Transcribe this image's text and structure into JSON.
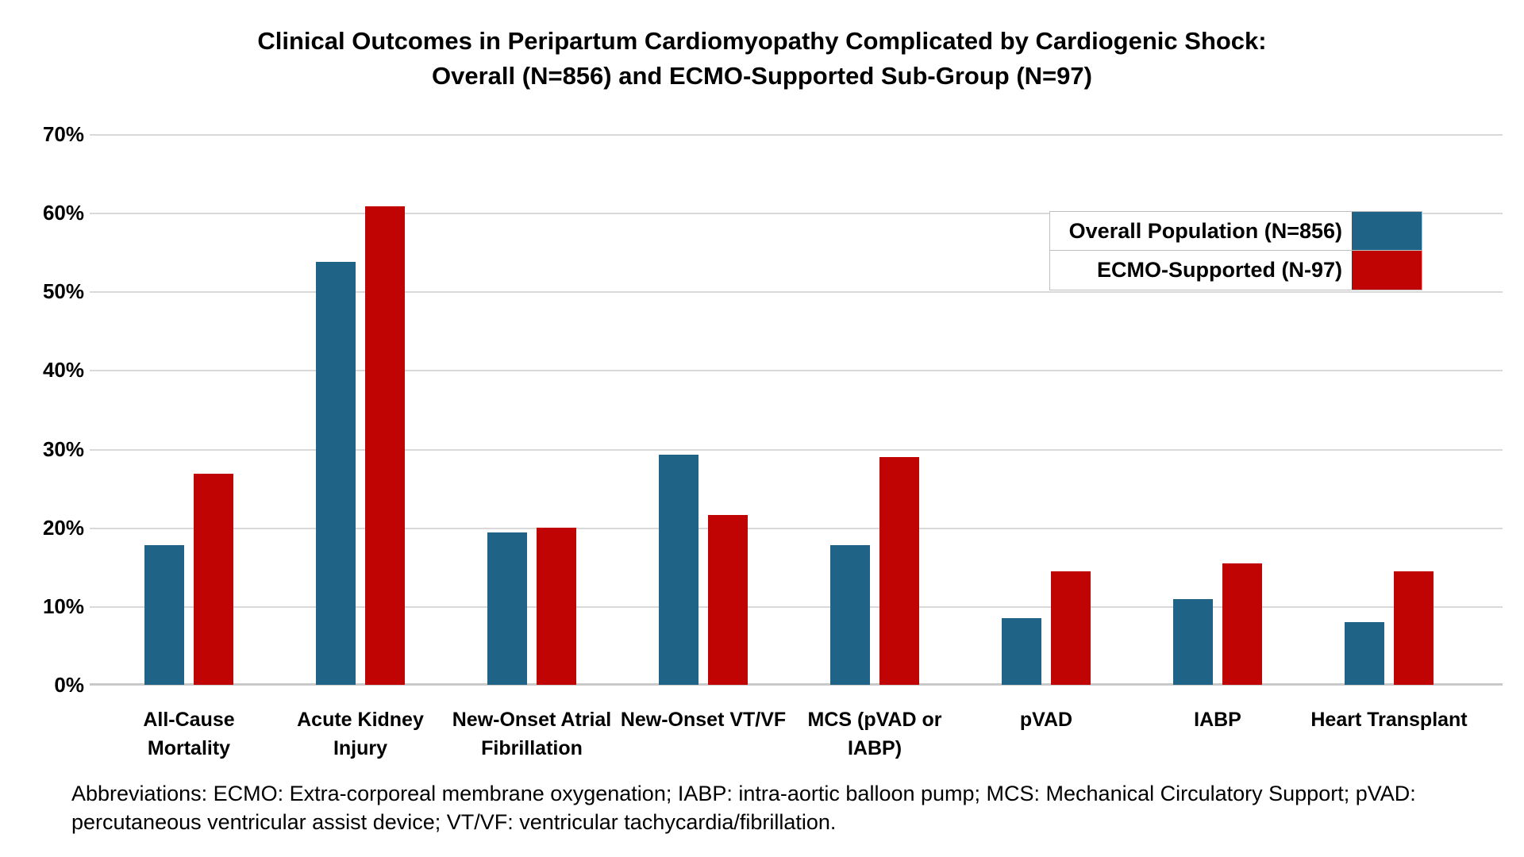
{
  "title": {
    "text": "Clinical Outcomes in Peripartum Cardiomyopathy Complicated by Cardiogenic Shock:\nOverall (N=856) and ECMO-Supported Sub-Group (N=97)"
  },
  "footnote": {
    "text": "Abbreviations: ECMO: Extra-corporeal membrane oxygenation; IABP: intra-aortic balloon pump; MCS: Mechanical Circulatory Support; pVAD:\npercutaneous ventricular assist device;  VT/VF: ventricular tachycardia/fibrillation."
  },
  "legend": {
    "position": "top-right",
    "entries": [
      {
        "label": "Overall Population (N=856)",
        "color": "#1F6386"
      },
      {
        "label": "ECMO-Supported (N-97)",
        "color": "#C00404"
      }
    ]
  },
  "chart_data": {
    "type": "bar",
    "title": "Clinical Outcomes in Peripartum Cardiomyopathy Complicated by Cardiogenic Shock: Overall (N=856) and ECMO-Supported Sub-Group (N=97)",
    "categories": [
      "All-Cause\nMortality",
      "Acute Kidney\nInjury",
      "New-Onset Atrial\nFibrillation",
      "New-Onset VT/VF",
      "MCS (pVAD or\nIABP)",
      "pVAD",
      "IABP",
      "Heart Transplant"
    ],
    "series": [
      {
        "name": "Overall Population (N=856)",
        "color": "#1F6386",
        "values": [
          17.8,
          53.8,
          19.4,
          29.3,
          17.8,
          8.5,
          10.9,
          8.0
        ]
      },
      {
        "name": "ECMO-Supported (N-97)",
        "color": "#C00404",
        "values": [
          26.8,
          60.8,
          20.0,
          21.6,
          28.9,
          14.4,
          15.4,
          14.4
        ]
      }
    ],
    "xlabel": "",
    "ylabel": "",
    "ylim": [
      0,
      70
    ],
    "ytick_step": 10,
    "ytick_labels": [
      "70%",
      "60%",
      "50%",
      "40%",
      "30%",
      "20%",
      "10%",
      "0%"
    ],
    "grid": true,
    "gridline_color": "#D9D9D9",
    "background_color": "#FFFFFF"
  }
}
